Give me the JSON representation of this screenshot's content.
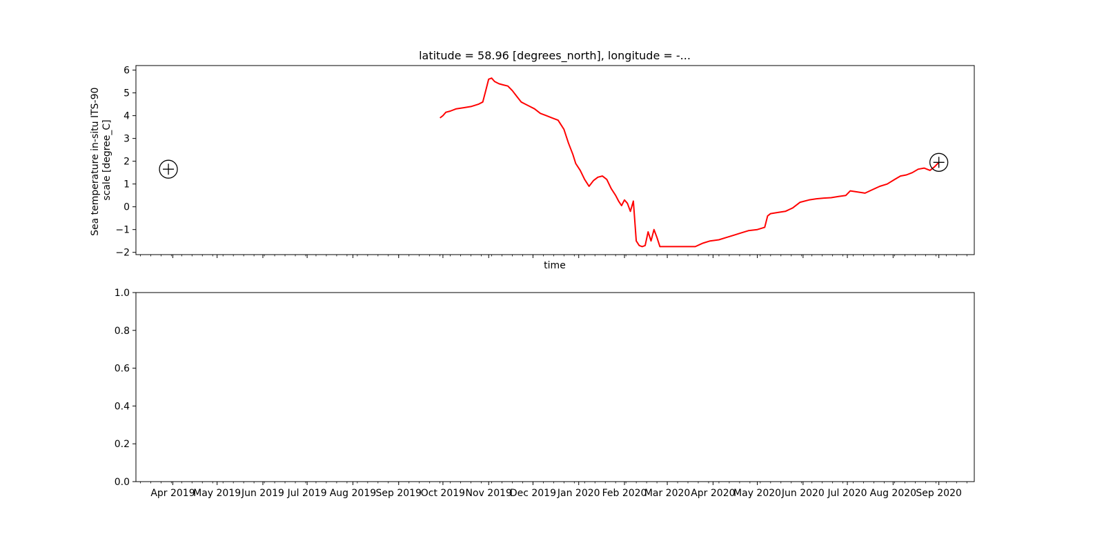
{
  "colors": {
    "series": "#ff0000",
    "axes": "#000000",
    "marker": "#000000",
    "background": "#ffffff"
  },
  "chart_data": [
    {
      "type": "line",
      "title": "latitude = 58.96 [degrees_north], longitude = -...",
      "xlabel": "time",
      "ylabel": "Sea temperature in-situ ITS-90 scale [degree_C]",
      "ylabel_lines": [
        "Sea temperature in-situ ITS-90",
        "scale [degree_C]"
      ],
      "xlim": [
        "2019-03-07",
        "2020-09-25"
      ],
      "ylim": [
        -2.1,
        6.2
      ],
      "yticks": [
        -2,
        -1,
        0,
        1,
        2,
        3,
        4,
        5,
        6
      ],
      "ytick_labels": [
        "−2",
        "−1",
        "0",
        "1",
        "2",
        "3",
        "4",
        "5",
        "6"
      ],
      "grid": false,
      "legend": "none",
      "markers": [
        {
          "x": "2019-03-29",
          "y": 1.65,
          "symbol": "circled-plus"
        },
        {
          "x": "2020-09-01",
          "y": 1.95,
          "symbol": "circled-plus"
        }
      ],
      "series": [
        {
          "color": "#ff0000",
          "x": [
            "2019-09-29",
            "2019-10-01",
            "2019-10-03",
            "2019-10-06",
            "2019-10-10",
            "2019-10-15",
            "2019-10-20",
            "2019-10-25",
            "2019-10-28",
            "2019-10-30",
            "2019-11-01",
            "2019-11-03",
            "2019-11-05",
            "2019-11-08",
            "2019-11-11",
            "2019-11-14",
            "2019-11-17",
            "2019-11-20",
            "2019-11-23",
            "2019-11-26",
            "2019-11-29",
            "2019-12-02",
            "2019-12-06",
            "2019-12-10",
            "2019-12-14",
            "2019-12-18",
            "2019-12-22",
            "2019-12-25",
            "2019-12-28",
            "2019-12-30",
            "2020-01-02",
            "2020-01-05",
            "2020-01-08",
            "2020-01-11",
            "2020-01-14",
            "2020-01-17",
            "2020-01-20",
            "2020-01-23",
            "2020-01-26",
            "2020-01-28",
            "2020-01-30",
            "2020-02-01",
            "2020-02-03",
            "2020-02-05",
            "2020-02-07",
            "2020-02-09",
            "2020-02-11",
            "2020-02-13",
            "2020-02-15",
            "2020-02-17",
            "2020-02-19",
            "2020-02-21",
            "2020-02-23",
            "2020-02-25",
            "2020-03-01",
            "2020-03-10",
            "2020-03-20",
            "2020-03-25",
            "2020-03-30",
            "2020-04-05",
            "2020-04-10",
            "2020-04-15",
            "2020-04-20",
            "2020-04-25",
            "2020-05-01",
            "2020-05-06",
            "2020-05-08",
            "2020-05-10",
            "2020-05-15",
            "2020-05-20",
            "2020-05-25",
            "2020-05-30",
            "2020-06-05",
            "2020-06-10",
            "2020-06-15",
            "2020-06-20",
            "2020-06-25",
            "2020-06-30",
            "2020-07-03",
            "2020-07-08",
            "2020-07-13",
            "2020-07-18",
            "2020-07-23",
            "2020-07-28",
            "2020-08-02",
            "2020-08-06",
            "2020-08-10",
            "2020-08-14",
            "2020-08-18",
            "2020-08-22",
            "2020-08-26",
            "2020-08-29",
            "2020-09-01"
          ],
          "values": [
            3.9,
            4.0,
            4.15,
            4.2,
            4.3,
            4.35,
            4.4,
            4.5,
            4.6,
            5.1,
            5.6,
            5.65,
            5.5,
            5.4,
            5.35,
            5.3,
            5.1,
            4.85,
            4.6,
            4.5,
            4.4,
            4.3,
            4.1,
            4.0,
            3.9,
            3.8,
            3.4,
            2.8,
            2.3,
            1.9,
            1.6,
            1.2,
            0.9,
            1.15,
            1.3,
            1.35,
            1.2,
            0.8,
            0.5,
            0.25,
            0.05,
            0.3,
            0.15,
            -0.2,
            0.25,
            -1.5,
            -1.7,
            -1.75,
            -1.7,
            -1.1,
            -1.5,
            -1.0,
            -1.35,
            -1.75,
            -1.75,
            -1.75,
            -1.75,
            -1.6,
            -1.5,
            -1.45,
            -1.35,
            -1.25,
            -1.15,
            -1.05,
            -1.0,
            -0.9,
            -0.4,
            -0.3,
            -0.25,
            -0.2,
            -0.05,
            0.2,
            0.3,
            0.35,
            0.38,
            0.4,
            0.45,
            0.5,
            0.7,
            0.65,
            0.6,
            0.75,
            0.9,
            1.0,
            1.2,
            1.35,
            1.4,
            1.5,
            1.65,
            1.7,
            1.6,
            1.75,
            1.95
          ]
        }
      ]
    },
    {
      "type": "line",
      "title": "",
      "xlabel": "",
      "ylabel": "",
      "xlim": [
        "2019-03-07",
        "2020-09-25"
      ],
      "ylim": [
        0,
        1
      ],
      "yticks": [
        0,
        0.2,
        0.4,
        0.6,
        0.8,
        1.0
      ],
      "ytick_labels": [
        "0.0",
        "0.2",
        "0.4",
        "0.6",
        "0.8",
        "1.0"
      ],
      "xtick_dates": [
        "2019-04-01",
        "2019-05-01",
        "2019-06-01",
        "2019-07-01",
        "2019-08-01",
        "2019-09-01",
        "2019-10-01",
        "2019-11-01",
        "2019-12-01",
        "2020-01-01",
        "2020-02-01",
        "2020-03-01",
        "2020-04-01",
        "2020-05-01",
        "2020-06-01",
        "2020-07-01",
        "2020-08-01",
        "2020-09-01"
      ],
      "xtick_labels": [
        "Apr 2019",
        "May 2019",
        "Jun 2019",
        "Jul 2019",
        "Aug 2019",
        "Sep 2019",
        "Oct 2019",
        "Nov 2019",
        "Dec 2019",
        "Jan 2020",
        "Feb 2020",
        "Mar 2020",
        "Apr 2020",
        "May 2020",
        "Jun 2020",
        "Jul 2020",
        "Aug 2020",
        "Sep 2020"
      ],
      "grid": false,
      "legend": "none",
      "series": []
    }
  ]
}
